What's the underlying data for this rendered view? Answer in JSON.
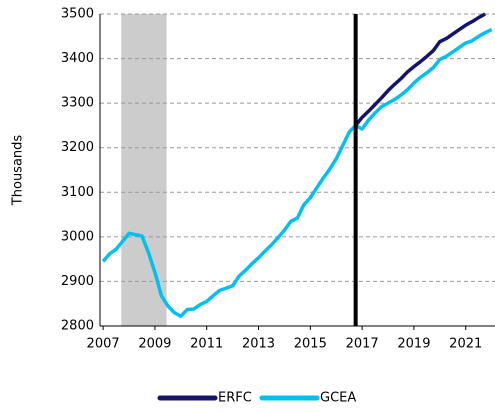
{
  "chart_data": {
    "type": "line",
    "y_label": "Thousands",
    "x": [
      2007,
      2007.25,
      2007.5,
      2007.75,
      2008,
      2008.25,
      2008.5,
      2008.75,
      2009,
      2009.25,
      2009.5,
      2009.75,
      2010,
      2010.25,
      2010.5,
      2010.75,
      2011,
      2011.25,
      2011.5,
      2011.75,
      2012,
      2012.25,
      2012.5,
      2012.75,
      2013,
      2013.25,
      2013.5,
      2013.75,
      2014,
      2014.25,
      2014.5,
      2014.75,
      2015,
      2015.25,
      2015.5,
      2015.75,
      2016,
      2016.25,
      2016.5,
      2016.75,
      2017,
      2017.25,
      2017.5,
      2017.75,
      2018,
      2018.25,
      2018.5,
      2018.75,
      2019,
      2019.25,
      2019.5,
      2019.75,
      2020,
      2020.25,
      2020.5,
      2020.75,
      2021,
      2021.25,
      2021.5,
      2021.75,
      2022
    ],
    "series": [
      {
        "name": "ERFC",
        "color": "#14146e",
        "values": [
          null,
          null,
          null,
          null,
          null,
          null,
          null,
          null,
          null,
          null,
          null,
          null,
          null,
          null,
          null,
          null,
          null,
          null,
          null,
          null,
          null,
          null,
          null,
          null,
          null,
          null,
          null,
          null,
          null,
          null,
          null,
          null,
          null,
          null,
          null,
          null,
          null,
          null,
          null,
          3250,
          3268,
          3282,
          3297,
          3312,
          3328,
          3342,
          3355,
          3370,
          3382,
          3393,
          3405,
          3418,
          3438,
          3445,
          3455,
          3465,
          3475,
          3483,
          3492,
          3500,
          null
        ]
      },
      {
        "name": "GCEA",
        "color": "#00c0f0",
        "values": [
          2945,
          2962,
          2972,
          2990,
          3008,
          3005,
          3002,
          2965,
          2920,
          2868,
          2845,
          2830,
          2822,
          2837,
          2838,
          2848,
          2855,
          2868,
          2880,
          2885,
          2890,
          2912,
          2925,
          2940,
          2953,
          2968,
          2982,
          2998,
          3015,
          3035,
          3042,
          3072,
          3088,
          3110,
          3132,
          3152,
          3175,
          3205,
          3235,
          3250,
          3242,
          3262,
          3278,
          3292,
          3300,
          3308,
          3318,
          3330,
          3345,
          3358,
          3368,
          3380,
          3398,
          3405,
          3415,
          3425,
          3435,
          3440,
          3450,
          3458,
          3465
        ]
      }
    ],
    "shaded_region": [
      2007.7,
      2009.45
    ],
    "vertical_line": 2016.75,
    "xlim": [
      2006.88,
      2022.13
    ],
    "xticks": [
      2007,
      2009,
      2011,
      2013,
      2015,
      2017,
      2019,
      2021
    ],
    "ylim": [
      2800,
      3500
    ],
    "yticks": [
      2800,
      2900,
      3000,
      3100,
      3200,
      3300,
      3400,
      3500
    ],
    "grid": true,
    "legend": "bottom"
  }
}
